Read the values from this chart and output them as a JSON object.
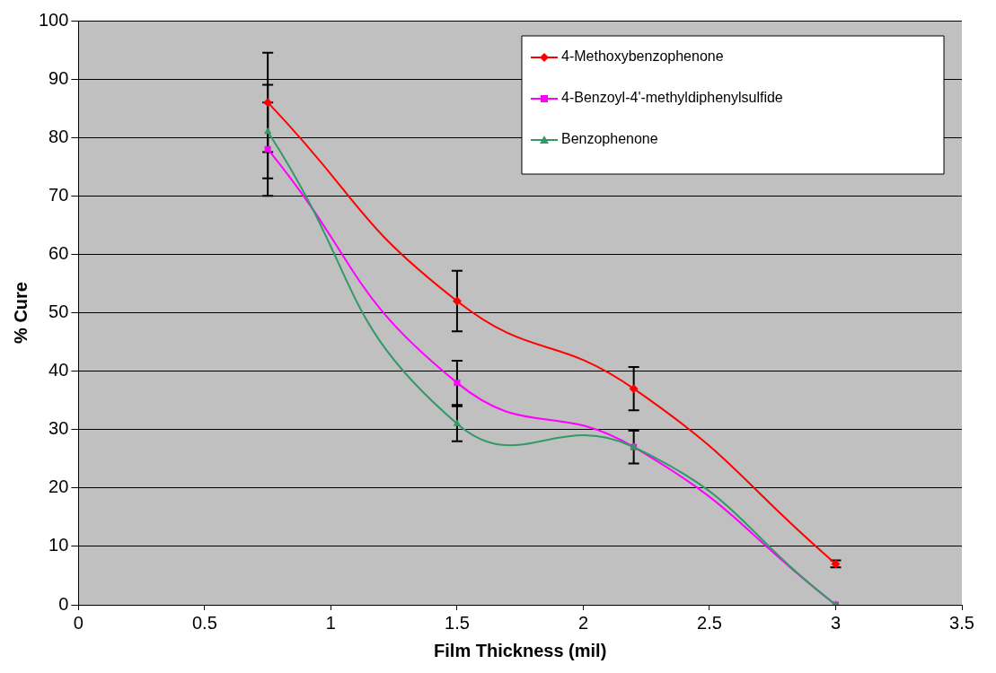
{
  "chart_data": {
    "type": "line",
    "xlabel": "Film Thickness (mil)",
    "ylabel": "% Cure",
    "xlim": [
      0,
      3.5
    ],
    "xticks": [
      0,
      0.5,
      1,
      1.5,
      2,
      2.5,
      3,
      3.5
    ],
    "ylim": [
      0,
      100
    ],
    "yticks": [
      0,
      10,
      20,
      30,
      40,
      50,
      60,
      70,
      80,
      90,
      100
    ],
    "grid": "y",
    "legend": "top right",
    "line_style": "solid",
    "x": [
      0.75,
      1.5,
      2.2,
      3
    ],
    "series": [
      {
        "name": "4-Methoxybenzophenone",
        "color": "#ff0000",
        "marker": "diamond",
        "values": [
          86,
          52,
          37,
          7
        ],
        "errors": [
          8.5,
          5.2,
          3.7,
          0.6
        ]
      },
      {
        "name": "4-Benzoyl-4'-methyldiphenylsulfide",
        "color": "#ff00ff",
        "marker": "square",
        "values": [
          78,
          38,
          27,
          0
        ],
        "errors": [
          8,
          3.8,
          2.8,
          null
        ]
      },
      {
        "name": "Benzophenone",
        "color": "#339966",
        "marker": "triangle",
        "values": [
          81,
          31,
          27,
          0
        ],
        "errors": [
          8,
          3,
          2.8,
          null
        ]
      }
    ]
  }
}
